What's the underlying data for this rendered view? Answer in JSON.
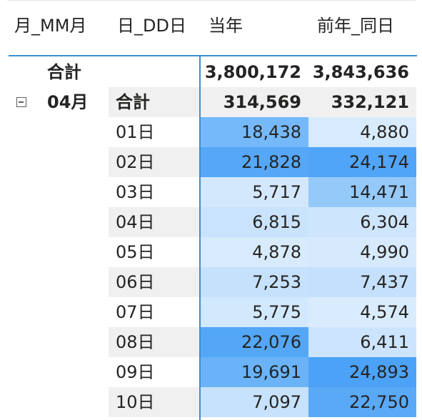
{
  "headers": {
    "month": "月_MM月",
    "day": "日_DD日",
    "current": "当年",
    "prior": "前年_同日"
  },
  "grand_total": {
    "label": "合計",
    "current": "3,800,172",
    "prior": "3,843,636"
  },
  "month_group": {
    "label": "04月",
    "expand_icon": "collapse-minus-icon",
    "subtotal_label": "合計",
    "subtotal_current": "314,569",
    "subtotal_prior": "332,121"
  },
  "colors": {
    "accent": "#3a8fd4",
    "band": "#f0f0f0",
    "heat_low": "#d6eafd",
    "heat_high": "#4da3f7"
  },
  "rows": [
    {
      "day": "01日",
      "current": "18,438",
      "prior": "4,880",
      "current_color": "#76b9fa",
      "prior_color": "#d8ebfd"
    },
    {
      "day": "02日",
      "current": "21,828",
      "prior": "24,174",
      "current_color": "#56a7f7",
      "prior_color": "#51a5f8"
    },
    {
      "day": "03日",
      "current": "5,717",
      "prior": "14,471",
      "current_color": "#d3e8fd",
      "prior_color": "#95c9fa"
    },
    {
      "day": "04日",
      "current": "6,815",
      "prior": "6,304",
      "current_color": "#cae3fc",
      "prior_color": "#cde5fd"
    },
    {
      "day": "05日",
      "current": "4,878",
      "prior": "4,990",
      "current_color": "#d8ebfd",
      "prior_color": "#d7eafd"
    },
    {
      "day": "06日",
      "current": "7,253",
      "prior": "7,437",
      "current_color": "#c6e1fc",
      "prior_color": "#c5e0fc"
    },
    {
      "day": "07日",
      "current": "5,775",
      "prior": "4,574",
      "current_color": "#d2e8fd",
      "prior_color": "#d9ecfd"
    },
    {
      "day": "08日",
      "current": "22,076",
      "prior": "6,411",
      "current_color": "#54a6f7",
      "prior_color": "#cce4fd"
    },
    {
      "day": "09日",
      "current": "19,691",
      "prior": "24,893",
      "current_color": "#6ab3f8",
      "prior_color": "#4ca2f7"
    },
    {
      "day": "10日",
      "current": "7,097",
      "prior": "22,750",
      "current_color": "#c7e2fc",
      "prior_color": "#5aa9f7"
    }
  ]
}
